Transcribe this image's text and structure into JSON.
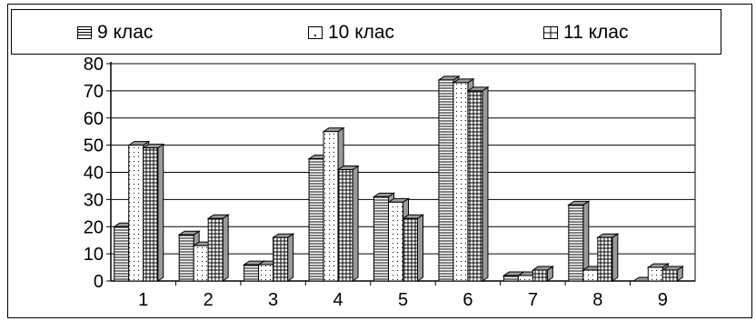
{
  "colors": {
    "bar_fill": "#ffffff",
    "bar_side": "#9a9a9a",
    "stroke": "#000000",
    "grid": "#000000"
  },
  "legend": {
    "items": [
      {
        "label": "9 клас",
        "pattern": "horizontal-lines"
      },
      {
        "label": "10 клас",
        "pattern": "dots"
      },
      {
        "label": "11 клас",
        "pattern": "grid"
      }
    ]
  },
  "chart_data": {
    "type": "bar",
    "title": "",
    "xlabel": "",
    "ylabel": "",
    "categories": [
      "1",
      "2",
      "3",
      "4",
      "5",
      "6",
      "7",
      "8",
      "9"
    ],
    "series": [
      {
        "name": "9 клас",
        "values": [
          20,
          17,
          6,
          45,
          31,
          74,
          2,
          28,
          0
        ]
      },
      {
        "name": "10 клас",
        "values": [
          50,
          13,
          6,
          55,
          29,
          73,
          2,
          4,
          5
        ]
      },
      {
        "name": "11 клас",
        "values": [
          49,
          23,
          16,
          41,
          23,
          70,
          4,
          16,
          4
        ]
      }
    ],
    "ylim": [
      0,
      80
    ],
    "yticks": [
      "0",
      "10",
      "20",
      "30",
      "40",
      "50",
      "60",
      "70",
      "80"
    ],
    "grid": true,
    "legend_position": "top",
    "style": "3d"
  }
}
